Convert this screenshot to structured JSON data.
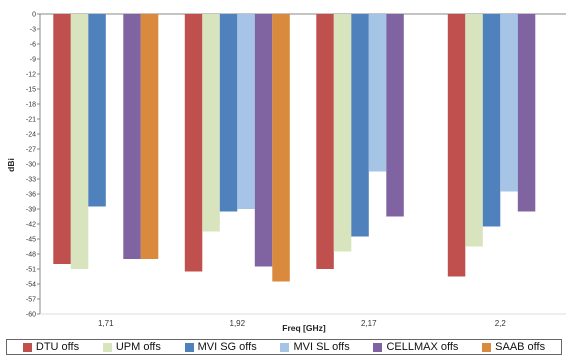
{
  "chart_data": {
    "type": "bar",
    "categories": [
      "1,71",
      "1,92",
      "2,17",
      "2,2"
    ],
    "series": [
      {
        "name": "DTU offs",
        "color": "#c0504d",
        "values": [
          -50,
          -51.5,
          -51,
          -52.5
        ]
      },
      {
        "name": "UPM offs",
        "color": "#d7e4bd",
        "values": [
          -51,
          -43.5,
          -47.5,
          -46.5
        ]
      },
      {
        "name": "MVI SG offs",
        "color": "#4f81bd",
        "values": [
          -38.5,
          -39.5,
          -44.5,
          -42.5
        ]
      },
      {
        "name": "MVI SL offs",
        "color": "#a6c4e6",
        "values": [
          null,
          -39,
          -31.5,
          -35.5
        ]
      },
      {
        "name": "CELLMAX offs",
        "color": "#8064a2",
        "values": [
          -49,
          -50.5,
          -40.5,
          -39.5
        ]
      },
      {
        "name": "SAAB offs",
        "color": "#d98a3c",
        "values": [
          -49,
          -53.5,
          null,
          null
        ]
      }
    ],
    "ylabel": "dBi",
    "xlabel": "Freq [GHz]",
    "ylim": [
      -60,
      0
    ],
    "yticks": [
      0,
      -3,
      -6,
      -9,
      -12,
      -15,
      -18,
      -21,
      -24,
      -27,
      -30,
      -33,
      -36,
      -39,
      -42,
      -45,
      -48,
      -51,
      -54,
      -57,
      -60
    ],
    "ytick_labels": [
      "0",
      "-3",
      "-6",
      "-9",
      "-12",
      "-15",
      "-18",
      "-21",
      "-24",
      "-27",
      "-30",
      "-33",
      "-36",
      "-39",
      "-42",
      "-45",
      "-48",
      "-51",
      "-54",
      "-57",
      "-60"
    ],
    "grid": false,
    "legend_position": "bottom"
  }
}
